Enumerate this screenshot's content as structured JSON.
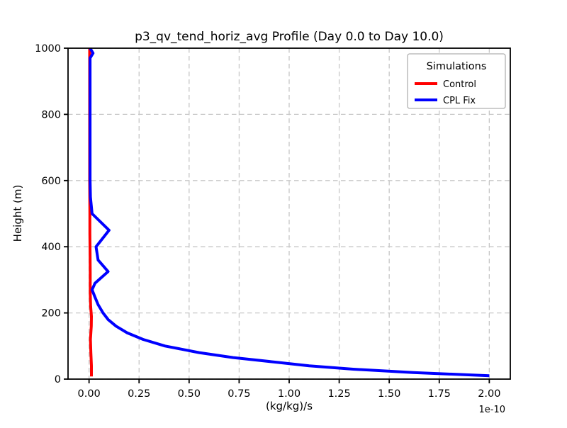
{
  "figure": {
    "background": "#ffffff"
  },
  "chart_data": {
    "type": "line",
    "title": "p3_qv_tend_horiz_avg Profile (Day 0.0 to Day 10.0)",
    "xlabel": "(kg/kg)/s",
    "ylabel": "Height (m)",
    "x_offset_label": "1e-10",
    "xlim": [
      -0.105,
      2.105
    ],
    "ylim": [
      0,
      1000
    ],
    "grid": {
      "on": true,
      "style": "dashed",
      "color": "#c7c7c7"
    },
    "xticks": {
      "values": [
        0.0,
        0.25,
        0.5,
        0.75,
        1.0,
        1.25,
        1.5,
        1.75,
        2.0
      ],
      "labels": [
        "0.00",
        "0.25",
        "0.50",
        "0.75",
        "1.00",
        "1.25",
        "1.50",
        "1.75",
        "2.00"
      ]
    },
    "yticks": {
      "values": [
        0,
        200,
        400,
        600,
        800,
        1000
      ],
      "labels": [
        "0",
        "200",
        "400",
        "600",
        "800",
        "1000"
      ]
    },
    "legend": {
      "title": "Simulations",
      "position": "upper right",
      "entries": [
        {
          "label": "Control",
          "color": "#ff0000"
        },
        {
          "label": "CPL Fix",
          "color": "#0000ff"
        }
      ]
    },
    "series": [
      {
        "name": "Control",
        "color": "#ff0000",
        "linewidth": 4,
        "points": [
          [
            0.012,
            8
          ],
          [
            0.012,
            40
          ],
          [
            0.009,
            80
          ],
          [
            0.007,
            120
          ],
          [
            0.011,
            160
          ],
          [
            0.012,
            190
          ],
          [
            0.008,
            220
          ],
          [
            0.006,
            260
          ],
          [
            0.006,
            320
          ],
          [
            0.005,
            380
          ],
          [
            0.004,
            440
          ],
          [
            0.004,
            500
          ],
          [
            0.003,
            600
          ],
          [
            0.003,
            700
          ],
          [
            0.003,
            800
          ],
          [
            0.003,
            900
          ],
          [
            0.003,
            1000
          ]
        ]
      },
      {
        "name": "CPL Fix",
        "color": "#0000ff",
        "linewidth": 4,
        "points": [
          [
            2.0,
            10
          ],
          [
            1.62,
            20
          ],
          [
            1.32,
            30
          ],
          [
            1.1,
            40
          ],
          [
            0.95,
            50
          ],
          [
            0.72,
            65
          ],
          [
            0.55,
            80
          ],
          [
            0.38,
            100
          ],
          [
            0.27,
            120
          ],
          [
            0.19,
            140
          ],
          [
            0.135,
            160
          ],
          [
            0.095,
            180
          ],
          [
            0.07,
            200
          ],
          [
            0.045,
            225
          ],
          [
            0.028,
            250
          ],
          [
            0.015,
            270
          ],
          [
            0.03,
            290
          ],
          [
            0.095,
            325
          ],
          [
            0.045,
            360
          ],
          [
            0.035,
            400
          ],
          [
            0.1,
            450
          ],
          [
            0.015,
            500
          ],
          [
            0.007,
            550
          ],
          [
            0.005,
            600
          ],
          [
            0.005,
            700
          ],
          [
            0.005,
            800
          ],
          [
            0.005,
            900
          ],
          [
            0.005,
            970
          ],
          [
            0.02,
            985
          ],
          [
            0.005,
            1000
          ]
        ]
      }
    ]
  }
}
